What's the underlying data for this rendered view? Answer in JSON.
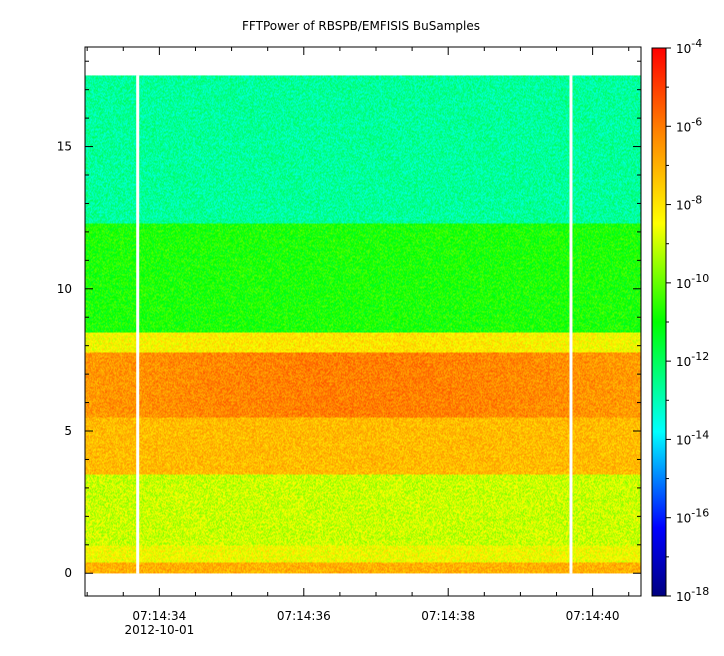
{
  "chart_data": {
    "type": "heatmap",
    "title": "FFTPower of RBSPB/EMFISIS  BuSamples",
    "xlabel": "",
    "ylabel": "",
    "x_ticks": [
      {
        "value": "07:14:34",
        "sub": "2012-10-01"
      },
      {
        "value": "07:14:36",
        "sub": ""
      },
      {
        "value": "07:14:38",
        "sub": ""
      },
      {
        "value": "07:14:40",
        "sub": ""
      }
    ],
    "y_ticks": [
      0,
      5,
      10,
      15
    ],
    "ylim": [
      -0.8,
      18.5
    ],
    "data_y_range": [
      0,
      17.5
    ],
    "gap_columns": [
      "07:14:33.7",
      "07:14:39.7"
    ],
    "colorbar": {
      "scale": "log",
      "range_exp": [
        -18,
        -4
      ],
      "ticks": [
        {
          "base": "10",
          "exp": "-4"
        },
        {
          "base": "10",
          "exp": "-6"
        },
        {
          "base": "10",
          "exp": "-8"
        },
        {
          "base": "10",
          "exp": "-10"
        },
        {
          "base": "10",
          "exp": "-12"
        },
        {
          "base": "10",
          "exp": "-14"
        },
        {
          "base": "10",
          "exp": "-16"
        },
        {
          "base": "10",
          "exp": "-18"
        }
      ],
      "colormap": "rainbow"
    },
    "spectrum_bands": [
      {
        "y_from": 12.3,
        "y_to": 17.5,
        "log_power": -12.7
      },
      {
        "y_from": 8.5,
        "y_to": 12.3,
        "log_power": -10.8
      },
      {
        "y_from": 7.8,
        "y_to": 8.5,
        "log_power": -8.5
      },
      {
        "y_from": 5.5,
        "y_to": 7.8,
        "log_power": -6.6
      },
      {
        "y_from": 3.5,
        "y_to": 5.5,
        "log_power": -7.2
      },
      {
        "y_from": 1.0,
        "y_to": 3.5,
        "log_power": -9.0
      },
      {
        "y_from": 0.4,
        "y_to": 1.0,
        "log_power": -8.5
      },
      {
        "y_from": 0.0,
        "y_to": 0.4,
        "log_power": -7.0
      }
    ]
  }
}
